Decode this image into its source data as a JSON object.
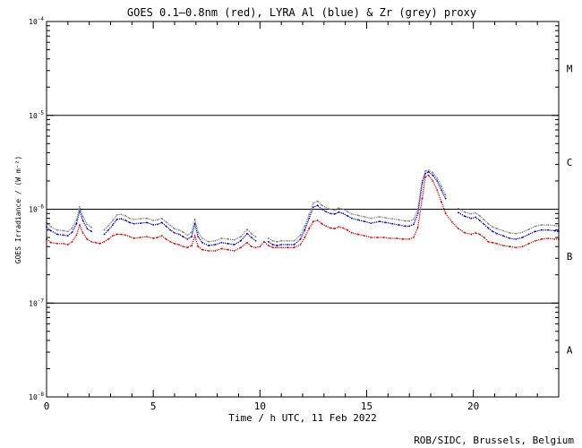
{
  "chart_data": {
    "type": "scatter",
    "title": "GOES 0.1–0.8nm (red), LYRA Al (blue) & Zr (grey) proxy",
    "xlabel": "Time / h UTC, 11 Feb 2022",
    "ylabel": "GOES Irradiance / (W m⁻²)",
    "credit": "ROB/SIDC, Brussels, Belgium",
    "xlim": [
      0,
      24
    ],
    "ylim": [
      1e-08,
      0.0001
    ],
    "yscale": "log",
    "x_ticks": [
      0,
      5,
      10,
      15,
      20
    ],
    "x_tick_labels": [
      "0",
      "5",
      "10",
      "15",
      "20"
    ],
    "y_tick_labels": [
      {
        "base": "10",
        "exp": "-4",
        "value": 0.0001
      },
      {
        "base": "10",
        "exp": "-5",
        "value": 1e-05
      },
      {
        "base": "10",
        "exp": "-6",
        "value": 1e-06
      },
      {
        "base": "10",
        "exp": "-7",
        "value": 1e-07
      },
      {
        "base": "10",
        "exp": "-8",
        "value": 1e-08
      }
    ],
    "flare_class_lines": [
      1e-05,
      1e-06,
      1e-07
    ],
    "flare_classes": [
      {
        "label": "M",
        "value": 3.16e-05
      },
      {
        "label": "C",
        "value": 3.16e-06
      },
      {
        "label": "B",
        "value": 3.16e-07
      },
      {
        "label": "A",
        "value": 3.16e-08
      }
    ],
    "series": [
      {
        "color": "#dc0000",
        "x": [
          0,
          0.2,
          0.5,
          0.8,
          1.0,
          1.2,
          1.4,
          1.55,
          1.7,
          1.9,
          2.1,
          2.3,
          2.5,
          2.7,
          2.9,
          3.1,
          3.3,
          3.5,
          3.7,
          3.9,
          4.1,
          4.4,
          4.7,
          5.0,
          5.2,
          5.4,
          5.6,
          5.8,
          6.0,
          6.2,
          6.4,
          6.6,
          6.8,
          6.95,
          7.1,
          7.3,
          7.6,
          7.9,
          8.2,
          8.5,
          8.8,
          9.1,
          9.4,
          9.6,
          9.8,
          10.0,
          10.2,
          10.4,
          10.6,
          10.8,
          11.0,
          11.3,
          11.6,
          11.9,
          12.1,
          12.3,
          12.5,
          12.7,
          12.9,
          13.1,
          13.3,
          13.5,
          13.7,
          13.9,
          14.1,
          14.3,
          14.6,
          14.9,
          15.2,
          15.5,
          15.8,
          16.1,
          16.4,
          16.7,
          17.0,
          17.2,
          17.4,
          17.6,
          17.75,
          17.9,
          18.1,
          18.3,
          18.5,
          18.7,
          19.0,
          19.3,
          19.6,
          19.9,
          20.1,
          20.3,
          20.5,
          20.7,
          20.9,
          21.1,
          21.4,
          21.7,
          22.0,
          22.3,
          22.6,
          22.9,
          23.2,
          23.5,
          23.8,
          24.0
        ],
        "y": [
          4.8e-07,
          4.4e-07,
          4.3e-07,
          4.3e-07,
          4.2e-07,
          4.5e-07,
          5.3e-07,
          6.8e-07,
          5.6e-07,
          4.8e-07,
          4.5e-07,
          4.4e-07,
          4.3e-07,
          4.5e-07,
          4.8e-07,
          5.2e-07,
          5.4e-07,
          5.4e-07,
          5.3e-07,
          5.1e-07,
          4.9e-07,
          5e-07,
          5.1e-07,
          4.9e-07,
          5e-07,
          5.2e-07,
          4.8e-07,
          4.5e-07,
          4.3e-07,
          4.2e-07,
          4e-07,
          3.9e-07,
          4.1e-07,
          5.2e-07,
          4e-07,
          3.7e-07,
          3.6e-07,
          3.6e-07,
          3.8e-07,
          3.7e-07,
          3.6e-07,
          3.9e-07,
          4.4e-07,
          4e-07,
          3.9e-07,
          4e-07,
          4.5e-07,
          4.1e-07,
          3.9e-07,
          3.9e-07,
          3.9e-07,
          3.9e-07,
          3.9e-07,
          4.2e-07,
          5e-07,
          6.2e-07,
          7.4e-07,
          7.6e-07,
          7e-07,
          6.6e-07,
          6.3e-07,
          6.2e-07,
          6.5e-07,
          6.3e-07,
          6e-07,
          5.6e-07,
          5.4e-07,
          5.2e-07,
          5e-07,
          5e-07,
          5e-07,
          4.9e-07,
          4.9e-07,
          4.8e-07,
          4.8e-07,
          5e-07,
          6.4e-07,
          1.3e-06,
          2.2e-06,
          2.3e-06,
          2e-06,
          1.6e-06,
          1.2e-06,
          9e-07,
          7.3e-07,
          6.2e-07,
          5.6e-07,
          5.4e-07,
          5.6e-07,
          5.4e-07,
          5e-07,
          4.5e-07,
          4.4e-07,
          4.3e-07,
          4.1e-07,
          4e-07,
          3.9e-07,
          4e-07,
          4.3e-07,
          4.6e-07,
          4.8e-07,
          4.9e-07,
          4.8e-07,
          4.8e-07
        ]
      },
      {
        "color": "#0000d0",
        "x": [
          0,
          0.2,
          0.5,
          0.8,
          1.0,
          1.2,
          1.4,
          1.55,
          1.7,
          1.9,
          2.1,
          2.7,
          2.9,
          3.1,
          3.3,
          3.5,
          3.7,
          3.9,
          4.1,
          4.4,
          4.7,
          5.0,
          5.2,
          5.4,
          5.6,
          5.8,
          6.0,
          6.2,
          6.4,
          6.6,
          6.8,
          6.95,
          7.1,
          7.3,
          7.6,
          7.9,
          8.2,
          8.5,
          8.8,
          9.1,
          9.4,
          9.6,
          9.8,
          10.4,
          10.6,
          10.8,
          11.0,
          11.3,
          11.6,
          11.9,
          12.1,
          12.3,
          12.5,
          12.7,
          12.9,
          13.1,
          13.3,
          13.5,
          13.7,
          13.9,
          14.1,
          14.3,
          14.6,
          14.9,
          15.2,
          15.6,
          15.9,
          16.2,
          16.5,
          16.8,
          17.0,
          17.2,
          17.4,
          17.6,
          17.75,
          17.9,
          18.1,
          18.3,
          18.5,
          18.7,
          19.3,
          19.6,
          19.9,
          20.1,
          20.3,
          20.5,
          20.7,
          20.9,
          21.1,
          21.4,
          21.7,
          22.0,
          22.3,
          22.6,
          22.9,
          23.2,
          23.5,
          23.8,
          24.0
        ],
        "y": [
          6.5e-07,
          5.9e-07,
          5.4e-07,
          5.3e-07,
          5.2e-07,
          5.7e-07,
          7e-07,
          9.6e-07,
          7.6e-07,
          6.2e-07,
          5.8e-07,
          5.4e-07,
          6e-07,
          6.8e-07,
          7.8e-07,
          7.9e-07,
          7.6e-07,
          7.2e-07,
          7e-07,
          7.1e-07,
          7.2e-07,
          6.8e-07,
          6.9e-07,
          7.2e-07,
          6.6e-07,
          6e-07,
          5.6e-07,
          5.4e-07,
          5.1e-07,
          4.8e-07,
          5.1e-07,
          7e-07,
          5.1e-07,
          4.4e-07,
          4.1e-07,
          4.2e-07,
          4.4e-07,
          4.3e-07,
          4.2e-07,
          4.6e-07,
          5.5e-07,
          5e-07,
          4.6e-07,
          4.5e-07,
          4.2e-07,
          4.1e-07,
          4.2e-07,
          4.2e-07,
          4.2e-07,
          4.8e-07,
          6e-07,
          8e-07,
          1.05e-06,
          1.1e-06,
          1e-06,
          9.4e-07,
          9e-07,
          8.9e-07,
          9.3e-07,
          9e-07,
          8.5e-07,
          8e-07,
          7.7e-07,
          7.4e-07,
          7.1e-07,
          7.4e-07,
          7.2e-07,
          7e-07,
          6.8e-07,
          6.6e-07,
          6.6e-07,
          6.9e-07,
          9e-07,
          1.9e-06,
          2.4e-06,
          2.5e-06,
          2.3e-06,
          2e-06,
          1.6e-06,
          1.3e-06,
          9.2e-07,
          8.4e-07,
          8e-07,
          8.2e-07,
          7.6e-07,
          6.9e-07,
          6.3e-07,
          5.8e-07,
          5.5e-07,
          5.2e-07,
          4.9e-07,
          4.8e-07,
          5e-07,
          5.4e-07,
          5.8e-07,
          6e-07,
          6e-07,
          5.9e-07,
          5.8e-07
        ]
      },
      {
        "color": "#808080",
        "x": [
          0,
          0.2,
          0.5,
          0.8,
          1.0,
          1.2,
          1.4,
          1.55,
          1.7,
          1.9,
          2.1,
          2.7,
          2.9,
          3.1,
          3.3,
          3.5,
          3.7,
          3.9,
          4.1,
          4.4,
          4.7,
          5.0,
          5.2,
          5.4,
          5.6,
          5.8,
          6.0,
          6.2,
          6.4,
          6.6,
          6.8,
          6.95,
          7.1,
          7.3,
          7.6,
          7.9,
          8.2,
          8.5,
          8.8,
          9.1,
          9.4,
          9.6,
          9.8,
          10.4,
          10.6,
          10.8,
          11.0,
          11.3,
          11.6,
          11.9,
          12.1,
          12.3,
          12.5,
          12.7,
          12.9,
          13.1,
          13.3,
          13.5,
          13.7,
          13.9,
          14.1,
          14.3,
          14.6,
          14.9,
          15.2,
          15.6,
          15.9,
          16.2,
          16.5,
          16.8,
          17.0,
          17.2,
          17.4,
          17.6,
          17.75,
          17.9,
          18.1,
          18.3,
          18.5,
          18.7,
          19.3,
          19.6,
          19.9,
          20.1,
          20.3,
          20.5,
          20.7,
          20.9,
          21.1,
          21.4,
          21.7,
          22.0,
          22.3,
          22.6,
          22.9,
          23.2,
          23.5,
          23.8,
          24.0
        ],
        "y": [
          7.2e-07,
          6.5e-07,
          6e-07,
          5.9e-07,
          5.8e-07,
          6.3e-07,
          7.7e-07,
          1.06e-06,
          8.4e-07,
          6.9e-07,
          6.4e-07,
          6e-07,
          6.7e-07,
          7.6e-07,
          8.7e-07,
          8.8e-07,
          8.5e-07,
          8e-07,
          7.8e-07,
          7.9e-07,
          8e-07,
          7.6e-07,
          7.7e-07,
          8e-07,
          7.3e-07,
          6.7e-07,
          6.2e-07,
          6e-07,
          5.7e-07,
          5.3e-07,
          5.7e-07,
          7.8e-07,
          5.7e-07,
          4.9e-07,
          4.5e-07,
          4.6e-07,
          4.9e-07,
          4.8e-07,
          4.7e-07,
          5.1e-07,
          6.1e-07,
          5.5e-07,
          5.1e-07,
          4.9e-07,
          4.6e-07,
          4.5e-07,
          4.6e-07,
          4.6e-07,
          4.6e-07,
          5.3e-07,
          6.6e-07,
          8.8e-07,
          1.16e-06,
          1.22e-06,
          1.1e-06,
          1.04e-06,
          1e-06,
          9.8e-07,
          1.03e-06,
          1e-06,
          9.4e-07,
          8.9e-07,
          8.6e-07,
          8.3e-07,
          8e-07,
          8.3e-07,
          8.1e-07,
          7.9e-07,
          7.7e-07,
          7.5e-07,
          7.5e-07,
          7.8e-07,
          1e-06,
          2e-06,
          2.55e-06,
          2.6e-06,
          2.45e-06,
          2.15e-06,
          1.75e-06,
          1.42e-06,
          1.02e-06,
          9.3e-07,
          8.9e-07,
          9.1e-07,
          8.5e-07,
          7.7e-07,
          7e-07,
          6.5e-07,
          6.2e-07,
          5.9e-07,
          5.6e-07,
          5.5e-07,
          5.7e-07,
          6.1e-07,
          6.6e-07,
          6.8e-07,
          6.8e-07,
          6.7e-07,
          6.6e-07
        ]
      }
    ]
  }
}
